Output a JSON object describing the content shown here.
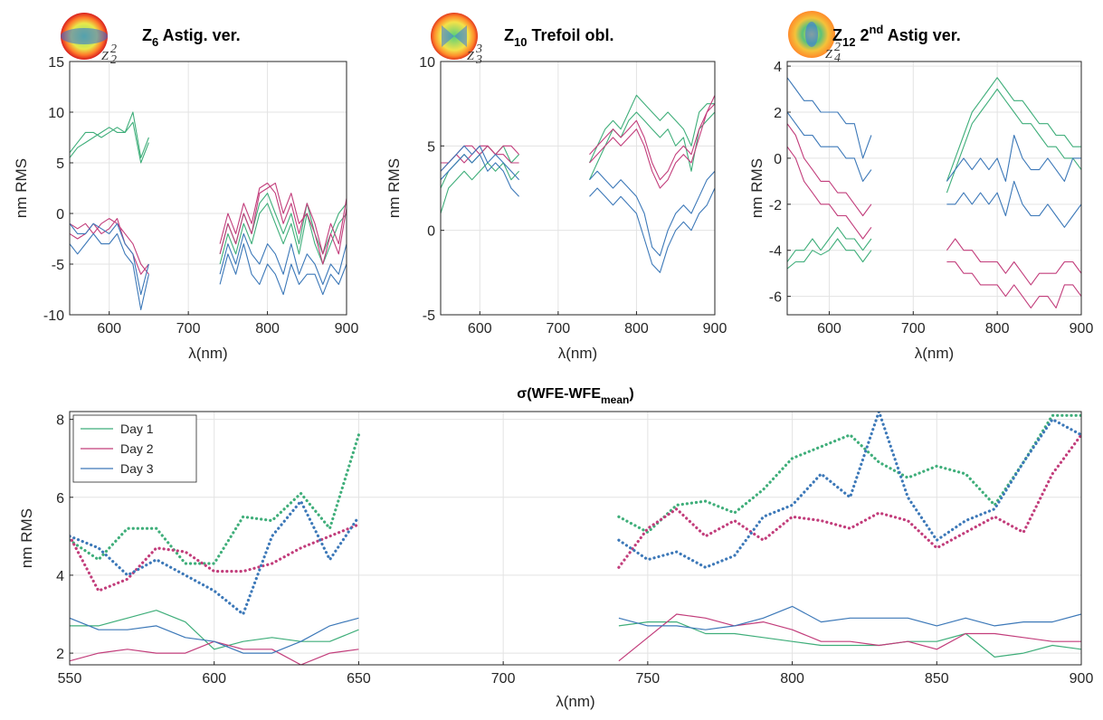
{
  "chart_data": [
    {
      "type": "line",
      "title_parts": [
        {
          "text": "Z"
        },
        {
          "text": "6",
          "shift": "sub"
        },
        {
          "text": " Astig. ver."
        }
      ],
      "icon_label": [
        {
          "text": "Z"
        },
        {
          "text": "2",
          "shift": "sub"
        },
        {
          "text": "2",
          "shift": "sup"
        }
      ],
      "xlabel": "λ(nm)",
      "ylabel": "nm RMS",
      "x": [
        550,
        560,
        570,
        580,
        590,
        600,
        610,
        620,
        630,
        640,
        650,
        700,
        740,
        750,
        760,
        770,
        780,
        790,
        800,
        810,
        820,
        830,
        840,
        850,
        860,
        870,
        880,
        890,
        900
      ],
      "xlim": [
        550,
        900
      ],
      "xticks": [
        600,
        700,
        800,
        900
      ],
      "ylim": [
        -10,
        15
      ],
      "yticks": [
        -10,
        -5,
        0,
        5,
        10,
        15
      ],
      "grid": true,
      "series": [
        {
          "color": "#3fae7a",
          "values": [
            6,
            7,
            8,
            8,
            7.5,
            8,
            8.5,
            8,
            9,
            5,
            7,
            null,
            -4,
            -1,
            -3,
            0,
            -2,
            1,
            2,
            0,
            -2,
            0,
            -3,
            1,
            -2,
            -4,
            -2,
            0,
            1
          ]
        },
        {
          "color": "#3fae7a",
          "values": [
            5.5,
            6.5,
            7,
            7.5,
            8,
            8.5,
            8,
            8,
            10,
            5.5,
            7.5,
            null,
            -5,
            -2,
            -4,
            -1,
            -3,
            0,
            1,
            -1,
            -3,
            -1,
            -4,
            0,
            -3,
            -5,
            -3,
            -1,
            0
          ]
        },
        {
          "color": "#c23d7b",
          "values": [
            -1,
            -1.5,
            -1,
            -2,
            -1,
            -0.5,
            -1,
            -2,
            -3,
            -5,
            -6,
            null,
            -3,
            0,
            -2,
            1,
            -1,
            2.5,
            3,
            2,
            -1,
            1,
            -2,
            1,
            -1,
            -4,
            -1,
            -3,
            1.5
          ]
        },
        {
          "color": "#c23d7b",
          "values": [
            -2,
            -2.5,
            -2,
            -1,
            -2,
            -1.5,
            -0.5,
            -3,
            -4,
            -6,
            -5,
            null,
            -4,
            -1,
            -3,
            0,
            -2,
            2,
            2.5,
            3,
            0,
            2,
            -1,
            0,
            -2,
            -5,
            -2,
            -4,
            0.5
          ]
        },
        {
          "color": "#3c78b8",
          "values": [
            -1,
            -2,
            -2,
            -1,
            -1.5,
            -2,
            -1,
            -3,
            -4,
            -8,
            -5,
            null,
            -6,
            -3,
            -5,
            -2,
            -4,
            -5,
            -3,
            -4,
            -6,
            -3,
            -6,
            -4,
            -5,
            -7,
            -5,
            -6,
            -3
          ]
        },
        {
          "color": "#3c78b8",
          "values": [
            -3,
            -4,
            -3,
            -2,
            -3,
            -3,
            -2,
            -4,
            -5,
            -9.5,
            -6,
            null,
            -7,
            -4,
            -6,
            -3,
            -6,
            -7,
            -5,
            -6,
            -8,
            -5,
            -7,
            -6,
            -6,
            -8,
            -6,
            -7,
            -5
          ]
        }
      ]
    },
    {
      "type": "line",
      "title_parts": [
        {
          "text": "Z"
        },
        {
          "text": "10",
          "shift": "sub"
        },
        {
          "text": " Trefoil obl."
        }
      ],
      "icon_label": [
        {
          "text": "Z"
        },
        {
          "text": "3",
          "shift": "sub"
        },
        {
          "text": "3",
          "shift": "sup"
        }
      ],
      "xlabel": "λ(nm)",
      "ylabel": "nm RMS",
      "x": [
        550,
        560,
        570,
        580,
        590,
        600,
        610,
        620,
        630,
        640,
        650,
        700,
        740,
        750,
        760,
        770,
        780,
        790,
        800,
        810,
        820,
        830,
        840,
        850,
        860,
        870,
        880,
        890,
        900
      ],
      "xlim": [
        550,
        900
      ],
      "xticks": [
        600,
        700,
        800,
        900
      ],
      "ylim": [
        -5,
        10
      ],
      "yticks": [
        -5,
        0,
        5,
        10
      ],
      "grid": true,
      "series": [
        {
          "color": "#3fae7a",
          "values": [
            1,
            2.5,
            3,
            3.5,
            3,
            3.5,
            4,
            3.5,
            4,
            3,
            3.5,
            null,
            3,
            4,
            5,
            6,
            5.5,
            6.5,
            7,
            6.5,
            6,
            5.5,
            6,
            5,
            5.5,
            3.5,
            6,
            6.5,
            7
          ]
        },
        {
          "color": "#3fae7a",
          "values": [
            2.5,
            3.5,
            4,
            4.5,
            4,
            4.5,
            5,
            4.5,
            5,
            4,
            4.5,
            null,
            4,
            5,
            6,
            6.5,
            6,
            7,
            8,
            7.5,
            7,
            6.5,
            7,
            6.5,
            6,
            5,
            7,
            7.5,
            7.5
          ]
        },
        {
          "color": "#c23d7b",
          "values": [
            4,
            4,
            4.5,
            5,
            5,
            4.5,
            5,
            4.5,
            4.5,
            4,
            4,
            null,
            4.5,
            5,
            5.5,
            6,
            5.5,
            6,
            6.5,
            5.5,
            4,
            3,
            3.5,
            4.5,
            5,
            4.5,
            6,
            7,
            7.5
          ]
        },
        {
          "color": "#c23d7b",
          "values": [
            3.5,
            4,
            4.5,
            4,
            4.5,
            5,
            5,
            4.5,
            5,
            5,
            4.5,
            null,
            4,
            4.5,
            5,
            5.5,
            5,
            5.5,
            6,
            5,
            3.5,
            2.5,
            3,
            4,
            4.5,
            4,
            5.5,
            7,
            8
          ]
        },
        {
          "color": "#3c78b8",
          "values": [
            3.5,
            4,
            4.5,
            5,
            4.5,
            5,
            4,
            4.5,
            4,
            3.5,
            3,
            null,
            3,
            3.5,
            3,
            2.5,
            3,
            2.5,
            2,
            1,
            -1,
            -1.5,
            0,
            1,
            1.5,
            1,
            2,
            3,
            3.5
          ]
        },
        {
          "color": "#3c78b8",
          "values": [
            3,
            3.5,
            4,
            4.5,
            4,
            4.5,
            3.5,
            4,
            3.5,
            2.5,
            2,
            null,
            2,
            2.5,
            2,
            1.5,
            2,
            1.5,
            1,
            -0.5,
            -2,
            -2.5,
            -1,
            0,
            0.5,
            0,
            1,
            1.5,
            2.5
          ]
        }
      ]
    },
    {
      "type": "line",
      "title_parts": [
        {
          "text": "Z"
        },
        {
          "text": "12",
          "shift": "sub"
        },
        {
          "text": " 2"
        },
        {
          "text": "nd",
          "shift": "sup"
        },
        {
          "text": " Astig ver."
        }
      ],
      "icon_label": [
        {
          "text": "Z"
        },
        {
          "text": "4",
          "shift": "sub"
        },
        {
          "text": "2",
          "shift": "sup"
        }
      ],
      "xlabel": "λ(nm)",
      "ylabel": "nm RMS",
      "x": [
        550,
        560,
        570,
        580,
        590,
        600,
        610,
        620,
        630,
        640,
        650,
        700,
        740,
        750,
        760,
        770,
        780,
        790,
        800,
        810,
        820,
        830,
        840,
        850,
        860,
        870,
        880,
        890,
        900
      ],
      "xlim": [
        550,
        900
      ],
      "xticks": [
        600,
        700,
        800,
        900
      ],
      "ylim": [
        -6.8,
        4.2
      ],
      "yticks": [
        -6,
        -4,
        -2,
        0,
        2,
        4
      ],
      "grid": true,
      "series": [
        {
          "color": "#3fae7a",
          "values": [
            -4.5,
            -4,
            -4,
            -3.5,
            -4,
            -3.5,
            -3,
            -3.5,
            -3.5,
            -4,
            -3.5,
            null,
            -1,
            0,
            1,
            2,
            2.5,
            3,
            3.5,
            3,
            2.5,
            2.5,
            2,
            1.5,
            1.5,
            1,
            1,
            0.5,
            0.5
          ]
        },
        {
          "color": "#3fae7a",
          "values": [
            -4.8,
            -4.5,
            -4.5,
            -4,
            -4.2,
            -4,
            -3.5,
            -4,
            -4,
            -4.5,
            -4,
            null,
            -1.5,
            -0.5,
            0.5,
            1.5,
            2,
            2.5,
            3,
            2.5,
            2,
            1.5,
            1.5,
            1,
            0.5,
            0.5,
            0,
            0,
            -0.5
          ]
        },
        {
          "color": "#c23d7b",
          "values": [
            1.5,
            1,
            0,
            -0.5,
            -1,
            -1,
            -1.5,
            -1.5,
            -2,
            -2.5,
            -2,
            null,
            -4,
            -3.5,
            -4,
            -4,
            -4.5,
            -4.5,
            -4.5,
            -5,
            -4.5,
            -5,
            -5.5,
            -5,
            -5,
            -5,
            -4.5,
            -4.5,
            -5
          ]
        },
        {
          "color": "#c23d7b",
          "values": [
            0.5,
            0,
            -1,
            -1.5,
            -2,
            -2,
            -2.5,
            -2.5,
            -3,
            -3.5,
            -3,
            null,
            -4.5,
            -4.5,
            -5,
            -5,
            -5.5,
            -5.5,
            -5.5,
            -6,
            -5.5,
            -6,
            -6.5,
            -6,
            -6,
            -6.5,
            -5.5,
            -5.5,
            -6
          ]
        },
        {
          "color": "#3c78b8",
          "values": [
            3.5,
            3,
            2.5,
            2.5,
            2,
            2,
            2,
            1.5,
            1.5,
            0,
            1,
            null,
            -1,
            -0.5,
            0,
            -0.5,
            0,
            -0.5,
            0,
            -1,
            1,
            0,
            -0.5,
            -0.5,
            0,
            -0.5,
            -1,
            0,
            0
          ]
        },
        {
          "color": "#3c78b8",
          "values": [
            2,
            1.5,
            1,
            1,
            0.5,
            0.5,
            0.5,
            0,
            0,
            -1,
            -0.5,
            null,
            -2,
            -2,
            -1.5,
            -2,
            -1.5,
            -2,
            -1.5,
            -2.5,
            -1,
            -2,
            -2.5,
            -2.5,
            -2,
            -2.5,
            -3,
            -2.5,
            -2
          ]
        }
      ]
    },
    {
      "type": "line",
      "title_parts": [
        {
          "text": "σ(WFE-WFE"
        },
        {
          "text": "mean",
          "shift": "sub"
        },
        {
          "text": ")"
        }
      ],
      "xlabel": "λ(nm)",
      "ylabel": "nm RMS",
      "x": [
        550,
        560,
        570,
        580,
        590,
        600,
        610,
        620,
        630,
        640,
        650,
        700,
        740,
        750,
        760,
        770,
        780,
        790,
        800,
        810,
        820,
        830,
        840,
        850,
        860,
        870,
        880,
        890,
        900
      ],
      "xlim": [
        550,
        900
      ],
      "xticks": [
        550,
        600,
        650,
        700,
        750,
        800,
        850,
        900
      ],
      "ylim": [
        1.7,
        8.2
      ],
      "yticks": [
        2,
        4,
        6,
        8
      ],
      "grid": true,
      "legend": "upper left",
      "series": [
        {
          "name": "Day 1",
          "color": "#3fae7a",
          "values": [
            2.7,
            2.7,
            2.9,
            3.1,
            2.8,
            2.1,
            2.3,
            2.4,
            2.3,
            2.3,
            2.6,
            null,
            2.7,
            2.8,
            2.8,
            2.5,
            2.5,
            2.4,
            2.3,
            2.2,
            2.2,
            2.2,
            2.3,
            2.3,
            2.5,
            1.9,
            2.0,
            2.2,
            2.1
          ]
        },
        {
          "name": "Day 2",
          "color": "#c23d7b",
          "values": [
            1.8,
            2.0,
            2.1,
            2.0,
            2.0,
            2.3,
            2.1,
            2.1,
            1.7,
            2.0,
            2.1,
            null,
            1.8,
            2.4,
            3.0,
            2.9,
            2.7,
            2.8,
            2.6,
            2.3,
            2.3,
            2.2,
            2.3,
            2.1,
            2.5,
            2.5,
            2.4,
            2.3,
            2.3
          ]
        },
        {
          "name": "Day 3",
          "color": "#3c78b8",
          "values": [
            2.9,
            2.6,
            2.6,
            2.7,
            2.4,
            2.3,
            2.0,
            2.0,
            2.3,
            2.7,
            2.9,
            null,
            2.9,
            2.7,
            2.7,
            2.6,
            2.7,
            2.9,
            3.2,
            2.8,
            2.9,
            2.9,
            2.9,
            2.7,
            2.9,
            2.7,
            2.8,
            2.8,
            3.0
          ]
        },
        {
          "color": "#3fae7a",
          "dotted": true,
          "values": [
            4.9,
            4.4,
            5.2,
            5.2,
            4.3,
            4.3,
            5.5,
            5.4,
            6.1,
            5.2,
            7.6,
            null,
            5.5,
            5.1,
            5.8,
            5.9,
            5.6,
            6.2,
            7.0,
            7.3,
            7.6,
            6.9,
            6.5,
            6.8,
            6.6,
            5.8,
            6.9,
            8.1,
            8.1
          ]
        },
        {
          "color": "#c23d7b",
          "dotted": true,
          "values": [
            5.0,
            3.6,
            3.9,
            4.7,
            4.6,
            4.1,
            4.1,
            4.3,
            4.7,
            5.0,
            5.3,
            null,
            4.2,
            5.2,
            5.7,
            5.0,
            5.4,
            4.9,
            5.5,
            5.4,
            5.2,
            5.6,
            5.4,
            4.7,
            5.1,
            5.5,
            5.1,
            6.6,
            7.6
          ]
        },
        {
          "color": "#3c78b8",
          "dotted": true,
          "values": [
            5.0,
            4.7,
            4.0,
            4.4,
            4.0,
            3.6,
            3.0,
            5.0,
            5.9,
            4.4,
            5.5,
            null,
            4.9,
            4.4,
            4.6,
            4.2,
            4.5,
            5.5,
            5.8,
            6.6,
            6.0,
            8.2,
            6.0,
            4.9,
            5.4,
            5.7,
            6.9,
            8.0,
            7.6
          ]
        }
      ]
    }
  ]
}
